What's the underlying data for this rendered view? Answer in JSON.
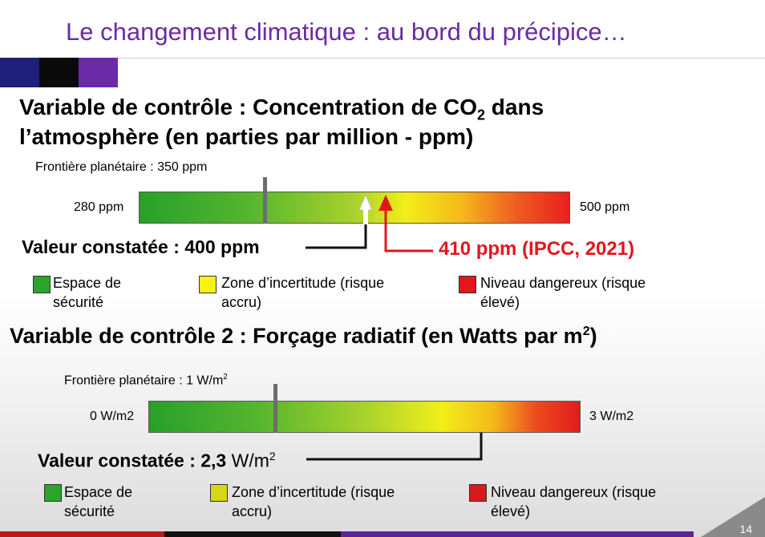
{
  "slide": {
    "title": "Le changement climatique : au bord du précipice…",
    "page_number": "14"
  },
  "section1": {
    "heading_line1_pre": "Variable de contrôle : Concentration de CO",
    "heading_line1_sub": "2",
    "heading_line1_post": " dans",
    "heading_line2": "l’atmosphère (en parties par million - ppm)",
    "boundary_label": "Frontière planétaire : 350 ppm",
    "bar_left_label": "280 ppm",
    "bar_right_label": "500 ppm",
    "observed_label": "Valeur constatée : 400 ppm",
    "ipcc_label": "410 ppm (IPCC, 2021)",
    "scale": {
      "min": 280,
      "max": 500,
      "boundary": 350,
      "observed": 400,
      "ipcc": 410
    }
  },
  "section2": {
    "heading_pre": "Variable de contrôle 2 : Forçage radiatif (en Watts par m",
    "heading_sup": "2",
    "heading_post": ")",
    "boundary_label_pre": "Frontière planétaire : 1 W/m",
    "boundary_label_sup": "2",
    "bar_left_label": "0 W/m2",
    "bar_right_label": "3 W/m2",
    "observed_label_bold": "Valeur constatée : 2,3",
    "observed_label_unit": " W/m",
    "observed_label_sup": "2",
    "scale": {
      "min": 0,
      "max": 3,
      "boundary": 1,
      "observed": 2.3
    }
  },
  "legend": {
    "safe_line1": "Espace de",
    "safe_line2": "sécurité",
    "uncertain_line1": "Zone d’incertitude (risque",
    "uncertain_line2": "accru)",
    "danger_line1": "Niveau dangereux (risque",
    "danger_line2": "élevé)"
  },
  "colors": {
    "title": "#6a2aa8",
    "safe": "#27a02a",
    "uncertain": "#f2ee1a",
    "danger": "#e3161c",
    "accent_red": "#e3161c"
  }
}
